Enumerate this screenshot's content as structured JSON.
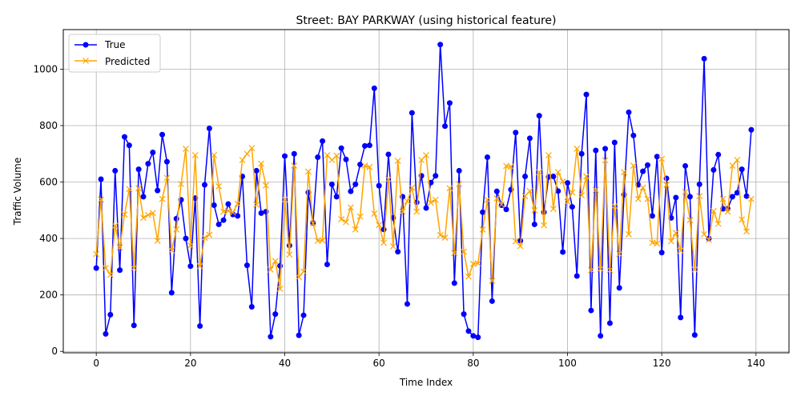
{
  "chart_data": {
    "type": "line",
    "title": "Street: BAY PARKWAY (using historical feature)",
    "xlabel": "Time Index",
    "ylabel": "Traffic Volume",
    "xlim": [
      -7,
      147
    ],
    "ylim": [
      -5,
      1140
    ],
    "xticks": [
      0,
      20,
      40,
      60,
      80,
      100,
      120,
      140
    ],
    "yticks": [
      0,
      200,
      400,
      600,
      800,
      1000
    ],
    "grid": true,
    "legend_position": "upper-left",
    "series": [
      {
        "name": "True",
        "color": "#0000ff",
        "marker": "circle",
        "values": [
          295,
          610,
          62,
          130,
          640,
          288,
          760,
          730,
          92,
          645,
          548,
          665,
          705,
          570,
          768,
          672,
          208,
          470,
          537,
          400,
          302,
          543,
          90,
          590,
          790,
          518,
          450,
          465,
          522,
          485,
          480,
          620,
          305,
          158,
          640,
          490,
          495,
          52,
          132,
          303,
          692,
          375,
          700,
          57,
          128,
          563,
          455,
          688,
          745,
          308,
          592,
          548,
          720,
          680,
          567,
          592,
          662,
          728,
          730,
          932,
          587,
          432,
          698,
          473,
          353,
          548,
          168,
          845,
          528,
          622,
          508,
          598,
          622,
          1087,
          798,
          880,
          242,
          640,
          132,
          72,
          55,
          50,
          493,
          688,
          178,
          567,
          518,
          503,
          573,
          775,
          392,
          620,
          755,
          450,
          835,
          493,
          618,
          620,
          568,
          352,
          597,
          512,
          267,
          700,
          910,
          145,
          712,
          55,
          718,
          100,
          740,
          225,
          555,
          847,
          765,
          590,
          638,
          660,
          480,
          690,
          350,
          613,
          473,
          545,
          120,
          657,
          548,
          58,
          592,
          1037,
          400,
          643,
          697,
          505,
          505,
          548,
          562,
          645,
          550,
          785
        ]
      },
      {
        "name": "Predicted",
        "color": "#ffa500",
        "marker": "x",
        "values": [
          345,
          538,
          295,
          272,
          445,
          368,
          485,
          575,
          295,
          578,
          473,
          483,
          490,
          392,
          540,
          615,
          358,
          432,
          593,
          718,
          375,
          695,
          302,
          403,
          413,
          695,
          585,
          495,
          498,
          492,
          523,
          678,
          700,
          720,
          520,
          665,
          588,
          290,
          320,
          222,
          538,
          343,
          658,
          263,
          283,
          637,
          453,
          392,
          393,
          695,
          678,
          693,
          468,
          458,
          510,
          432,
          478,
          658,
          653,
          488,
          448,
          385,
          610,
          372,
          675,
          495,
          532,
          580,
          495,
          678,
          695,
          527,
          537,
          412,
          403,
          578,
          348,
          593,
          353,
          265,
          310,
          312,
          432,
          537,
          250,
          542,
          520,
          657,
          655,
          390,
          373,
          550,
          568,
          500,
          635,
          447,
          695,
          505,
          635,
          602,
          530,
          563,
          718,
          553,
          620,
          288,
          572,
          292,
          677,
          288,
          515,
          345,
          635,
          415,
          658,
          540,
          580,
          540,
          385,
          382,
          682,
          590,
          390,
          420,
          357,
          565,
          465,
          290,
          550,
          415,
          395,
          497,
          452,
          540,
          495,
          658,
          678,
          467,
          425,
          540
        ]
      }
    ]
  }
}
